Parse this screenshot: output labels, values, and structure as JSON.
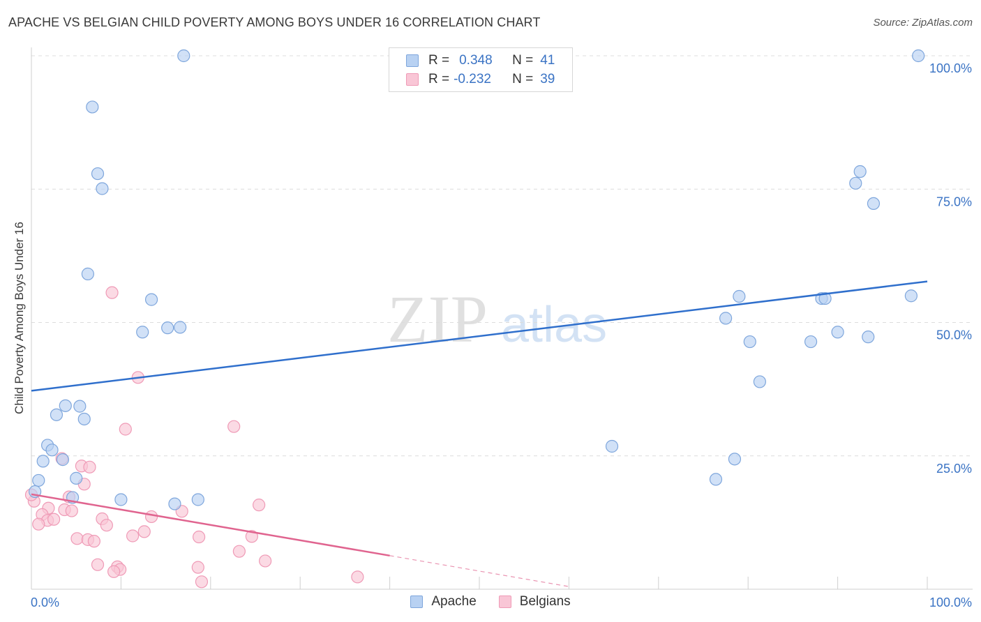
{
  "header": {
    "title": "APACHE VS BELGIAN CHILD POVERTY AMONG BOYS UNDER 16 CORRELATION CHART",
    "source": "Source: ZipAtlas.com"
  },
  "watermark": {
    "zip": "ZIP",
    "atlas": "atlas"
  },
  "legend": {
    "apache": {
      "r_label": "R =",
      "r_value": "0.348",
      "n_label": "N =",
      "n_value": "41"
    },
    "belgians": {
      "r_label": "R =",
      "r_value": "-0.232",
      "n_label": "N =",
      "n_value": "39"
    }
  },
  "bottom_legend": {
    "apache": "Apache",
    "belgians": "Belgians"
  },
  "colors": {
    "apache_fill": "#b8d1f2",
    "apache_stroke": "#7ea6dc",
    "apache_line": "#2f6fcc",
    "belgians_fill": "#f9c6d6",
    "belgians_stroke": "#ef9ab6",
    "belgians_line": "#e0648f",
    "tick_text": "#3a73c4",
    "grid": "#dcdcdc"
  },
  "chart_data": {
    "type": "scatter",
    "title": "APACHE VS BELGIAN CHILD POVERTY AMONG BOYS UNDER 16 CORRELATION CHART",
    "xlabel": "",
    "ylabel": "Child Poverty Among Boys Under 16",
    "xlim": [
      0,
      100
    ],
    "ylim": [
      0,
      100
    ],
    "x_tick_labels": [
      {
        "value": 0,
        "label": "0.0%"
      },
      {
        "value": 100,
        "label": "100.0%"
      }
    ],
    "y_tick_labels": [
      {
        "value": 25,
        "label": "25.0%"
      },
      {
        "value": 50,
        "label": "50.0%"
      },
      {
        "value": 75,
        "label": "75.0%"
      },
      {
        "value": 100,
        "label": "100.0%"
      }
    ],
    "grid": true,
    "series": [
      {
        "name": "Apache",
        "points": [
          [
            17.0,
            100.0
          ],
          [
            99.0,
            100.0
          ],
          [
            6.8,
            90.4
          ],
          [
            7.4,
            77.9
          ],
          [
            7.9,
            75.1
          ],
          [
            92.5,
            78.3
          ],
          [
            92.0,
            76.1
          ],
          [
            94.0,
            72.3
          ],
          [
            6.3,
            59.1
          ],
          [
            13.4,
            54.3
          ],
          [
            79.0,
            54.9
          ],
          [
            88.2,
            54.5
          ],
          [
            88.6,
            54.5
          ],
          [
            98.2,
            55.0
          ],
          [
            77.5,
            50.8
          ],
          [
            15.2,
            49.0
          ],
          [
            16.6,
            49.1
          ],
          [
            12.4,
            48.2
          ],
          [
            80.2,
            46.4
          ],
          [
            87.0,
            46.4
          ],
          [
            90.0,
            48.2
          ],
          [
            93.4,
            47.3
          ],
          [
            81.3,
            38.9
          ],
          [
            3.8,
            34.4
          ],
          [
            5.4,
            34.3
          ],
          [
            2.8,
            32.7
          ],
          [
            5.9,
            31.9
          ],
          [
            1.8,
            27.0
          ],
          [
            2.3,
            26.1
          ],
          [
            1.3,
            24.0
          ],
          [
            3.5,
            24.3
          ],
          [
            64.8,
            26.8
          ],
          [
            78.5,
            24.4
          ],
          [
            0.8,
            20.4
          ],
          [
            5.0,
            20.8
          ],
          [
            76.4,
            20.6
          ],
          [
            0.4,
            18.3
          ],
          [
            4.6,
            17.2
          ],
          [
            10.0,
            16.8
          ],
          [
            16.0,
            16.0
          ],
          [
            18.6,
            16.8
          ]
        ]
      },
      {
        "name": "Belgians",
        "points": [
          [
            9.0,
            55.6
          ],
          [
            11.9,
            39.7
          ],
          [
            10.5,
            30.0
          ],
          [
            22.6,
            30.5
          ],
          [
            3.4,
            24.5
          ],
          [
            5.6,
            23.1
          ],
          [
            6.5,
            22.9
          ],
          [
            5.9,
            19.7
          ],
          [
            0.3,
            16.5
          ],
          [
            4.2,
            17.3
          ],
          [
            1.9,
            15.2
          ],
          [
            1.2,
            14.0
          ],
          [
            1.8,
            12.9
          ],
          [
            2.5,
            13.1
          ],
          [
            3.7,
            14.9
          ],
          [
            4.5,
            14.7
          ],
          [
            0.8,
            12.2
          ],
          [
            7.9,
            13.2
          ],
          [
            8.4,
            12.0
          ],
          [
            13.4,
            13.6
          ],
          [
            16.8,
            14.6
          ],
          [
            25.4,
            15.8
          ],
          [
            12.6,
            10.8
          ],
          [
            11.3,
            10.0
          ],
          [
            5.1,
            9.5
          ],
          [
            6.3,
            9.3
          ],
          [
            7.0,
            9.0
          ],
          [
            18.7,
            9.8
          ],
          [
            24.6,
            9.9
          ],
          [
            23.2,
            7.1
          ],
          [
            7.4,
            4.6
          ],
          [
            9.6,
            4.2
          ],
          [
            9.9,
            3.7
          ],
          [
            9.2,
            3.3
          ],
          [
            18.6,
            4.1
          ],
          [
            26.1,
            5.3
          ],
          [
            19.0,
            1.4
          ],
          [
            36.4,
            2.3
          ],
          [
            0.0,
            17.7
          ]
        ]
      }
    ],
    "trendlines": [
      {
        "name": "Apache",
        "x": [
          0,
          100
        ],
        "y": [
          37.2,
          57.7
        ],
        "style": "solid"
      },
      {
        "name": "Belgians",
        "solid_x": [
          0,
          40
        ],
        "solid_y": [
          17.8,
          6.3
        ],
        "dashed_x": [
          40,
          60
        ],
        "dashed_y": [
          6.3,
          0.5
        ]
      }
    ]
  }
}
